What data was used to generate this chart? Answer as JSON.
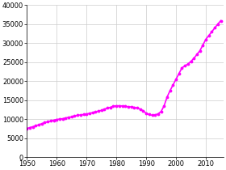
{
  "title": "",
  "xlabel": "",
  "ylabel": "",
  "xlim": [
    1950,
    2016
  ],
  "ylim": [
    0,
    40000
  ],
  "xticks": [
    1950,
    1960,
    1970,
    1980,
    1990,
    2000,
    2010
  ],
  "yticks": [
    0,
    5000,
    10000,
    15000,
    20000,
    25000,
    30000,
    35000,
    40000
  ],
  "line_color": "#ff00ff",
  "marker": ".",
  "markersize": 3.5,
  "linewidth": 1.2,
  "background_color": "#ffffff",
  "grid_color": "#cccccc",
  "years": [
    1950,
    1951,
    1952,
    1953,
    1954,
    1955,
    1956,
    1957,
    1958,
    1959,
    1960,
    1961,
    1962,
    1963,
    1964,
    1965,
    1966,
    1967,
    1968,
    1969,
    1970,
    1971,
    1972,
    1973,
    1974,
    1975,
    1976,
    1977,
    1978,
    1979,
    1980,
    1981,
    1982,
    1983,
    1984,
    1985,
    1986,
    1987,
    1988,
    1989,
    1990,
    1991,
    1992,
    1993,
    1994,
    1995,
    1996,
    1997,
    1998,
    1999,
    2000,
    2001,
    2002,
    2003,
    2004,
    2005,
    2006,
    2007,
    2008,
    2009,
    2010,
    2011,
    2012,
    2013,
    2014,
    2015
  ],
  "values": [
    7542,
    7764,
    7999,
    8249,
    8513,
    8791,
    9084,
    9300,
    9500,
    9700,
    9900,
    10000,
    10100,
    10300,
    10450,
    10600,
    10800,
    11000,
    11100,
    11200,
    11350,
    11500,
    11700,
    11900,
    12100,
    12300,
    12600,
    12900,
    13100,
    13400,
    13500,
    13500,
    13450,
    13350,
    13250,
    13200,
    13100,
    12900,
    12600,
    12200,
    11500,
    11200,
    11000,
    11100,
    11400,
    12000,
    13500,
    15800,
    17500,
    19000,
    20500,
    22000,
    23500,
    24000,
    24500,
    25200,
    26000,
    27000,
    28000,
    29500,
    31000,
    32000,
    33000,
    34000,
    35000,
    35900
  ]
}
